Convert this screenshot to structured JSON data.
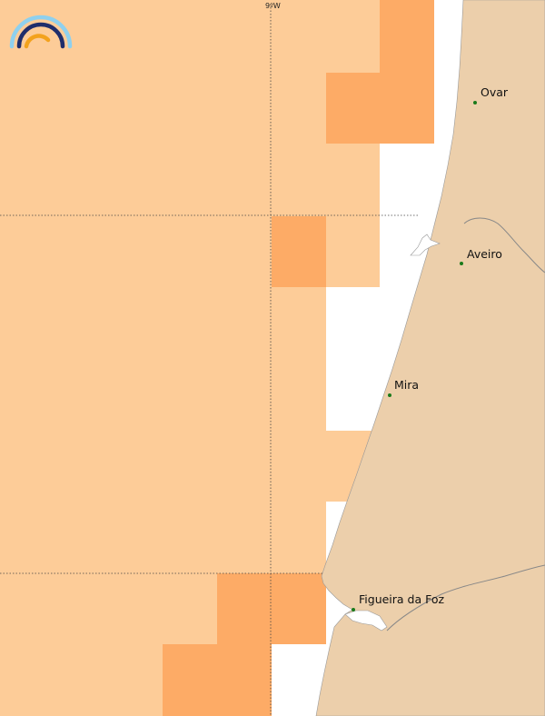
{
  "map": {
    "longitude_label": "9ºW",
    "colors": {
      "sea": "#ffffff",
      "land": "#eccfab",
      "cell_light": "#fdcc98",
      "cell_dark": "#fdab66",
      "river": "#888888",
      "grid": "#444444",
      "city_dot": "#1a7a1a",
      "logo": [
        "#8fd0ee",
        "#1f2d6b",
        "#f3a21d"
      ]
    },
    "logo_icon": "rainbow-arc-logo",
    "cities": [
      {
        "name": "Ovar"
      },
      {
        "name": "Aveiro"
      },
      {
        "name": "Mira"
      },
      {
        "name": "Figueira da Foz"
      }
    ]
  }
}
